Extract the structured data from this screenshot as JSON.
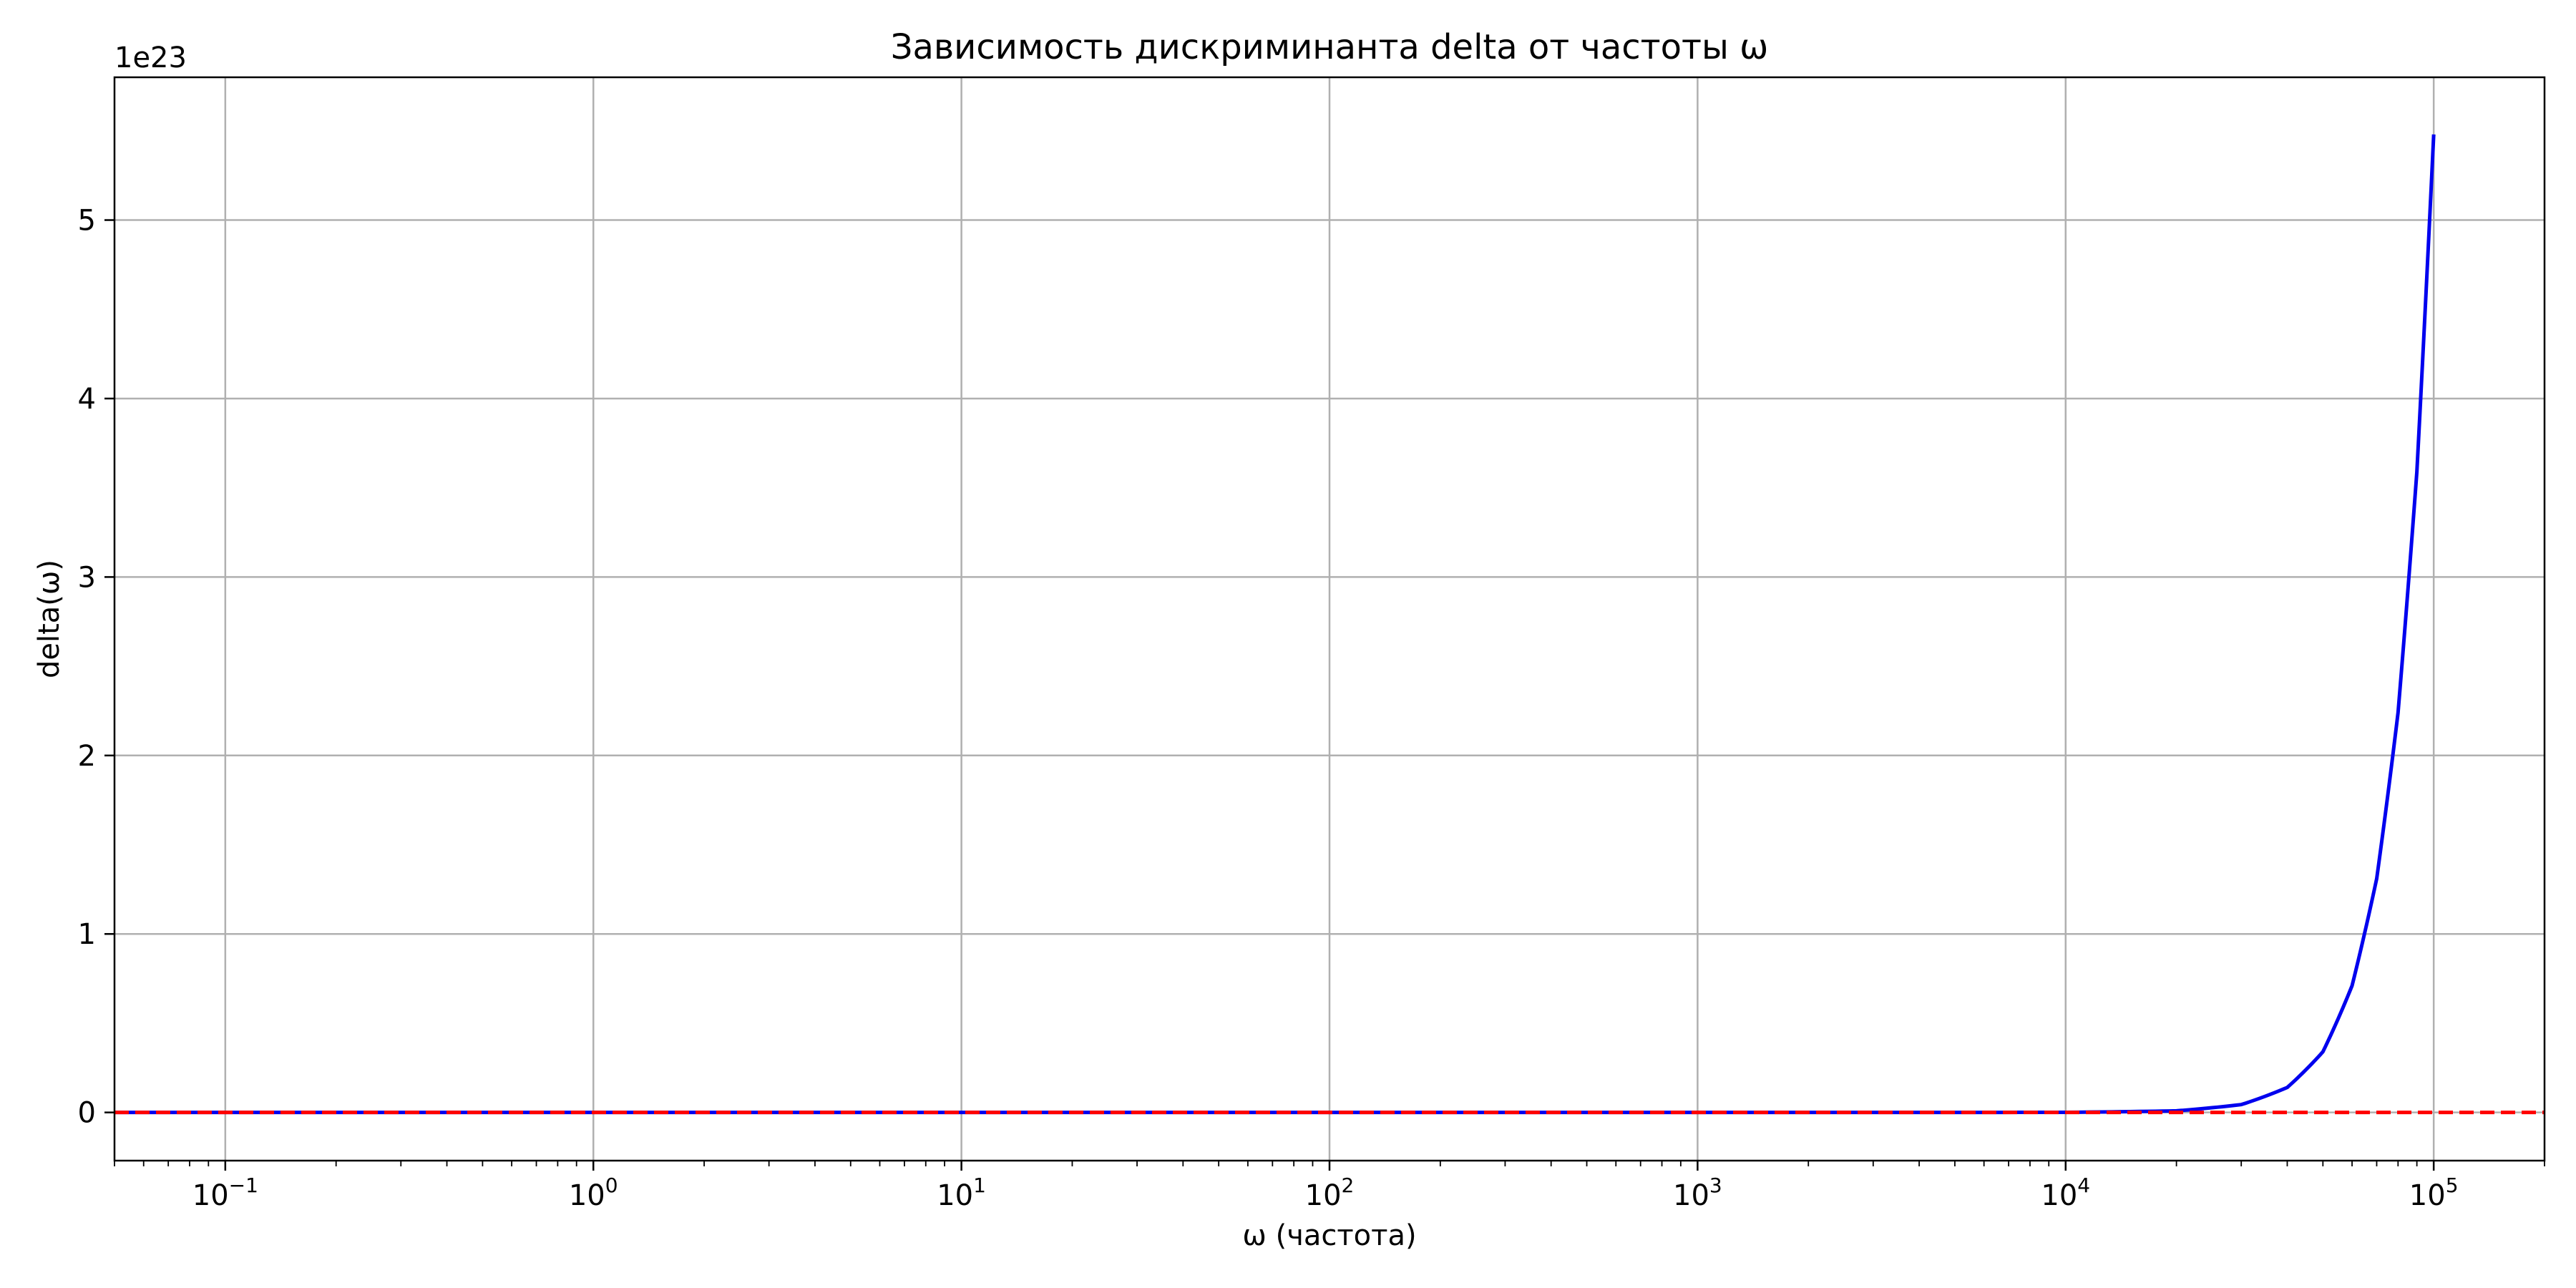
{
  "chart_data": {
    "type": "line",
    "title": "Зависимость дискриминанта delta от частоты ω",
    "xlabel": "ω (частота)",
    "ylabel": "delta(ω)",
    "x_scale": "log",
    "xlim": [
      0.05,
      200000
    ],
    "ylim": [
      -0.27,
      5.8
    ],
    "y_offset_label": "1e23",
    "y_multiplier": 1e+23,
    "grid": true,
    "x_ticks": [
      {
        "value": 0.1,
        "base": "10",
        "exp": "−1"
      },
      {
        "value": 1,
        "base": "10",
        "exp": "0"
      },
      {
        "value": 10,
        "base": "10",
        "exp": "1"
      },
      {
        "value": 100,
        "base": "10",
        "exp": "2"
      },
      {
        "value": 1000,
        "base": "10",
        "exp": "3"
      },
      {
        "value": 10000,
        "base": "10",
        "exp": "4"
      },
      {
        "value": 100000,
        "base": "10",
        "exp": "5"
      }
    ],
    "y_ticks": [
      {
        "value": 0,
        "label": "0"
      },
      {
        "value": 1,
        "label": "1"
      },
      {
        "value": 2,
        "label": "2"
      },
      {
        "value": 3,
        "label": "3"
      },
      {
        "value": 4,
        "label": "4"
      },
      {
        "value": 5,
        "label": "5"
      }
    ],
    "series": [
      {
        "color": "#0000ee",
        "style": "solid",
        "x": [
          0.05,
          1,
          100,
          10000,
          20000,
          30000,
          40000,
          50000,
          60000,
          70000,
          80000,
          90000,
          100000
        ],
        "y": [
          0,
          0,
          0,
          0.0005,
          0.009,
          0.044,
          0.14,
          0.34,
          0.71,
          1.31,
          2.24,
          3.59,
          5.48
        ]
      },
      {
        "color": "#ff0000",
        "style": "dashed",
        "x": [
          0.05,
          200000
        ],
        "y": [
          0,
          0
        ]
      }
    ]
  }
}
